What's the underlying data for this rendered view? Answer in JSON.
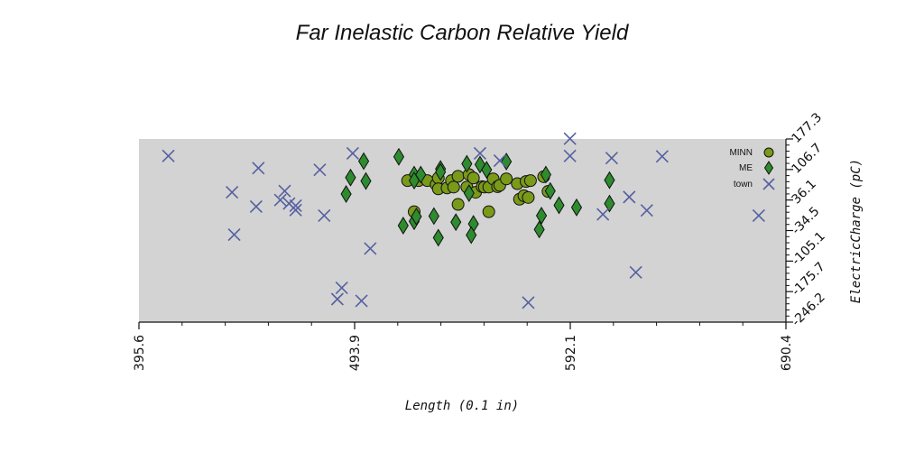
{
  "chart_data": {
    "type": "scatter",
    "title": "Far Inelastic Carbon Relative Yield",
    "xlabel": "Length (0.1 in)",
    "ylabel": "ElectricCharge (pC)",
    "xlim": [
      395.6,
      690.4
    ],
    "ylim": [
      -246.2,
      177.3
    ],
    "x_ticks": [
      "395.6",
      "493.9",
      "592.1",
      "690.4"
    ],
    "y_ticks": [
      "-246.2",
      "-175.7",
      "-105.1",
      "-34.5",
      "36.1",
      "106.7",
      "177.3"
    ],
    "grid": false,
    "background": "#d3d3d3",
    "legend_position": "top-right",
    "series": [
      {
        "name": "MINN",
        "marker": "circle",
        "color": "#7a9a1a",
        "points": [
          [
            518,
            81
          ],
          [
            523,
            81
          ],
          [
            527,
            81
          ],
          [
            531,
            72
          ],
          [
            532,
            87
          ],
          [
            532,
            62
          ],
          [
            536,
            64
          ],
          [
            538,
            81
          ],
          [
            539,
            66
          ],
          [
            541,
            91
          ],
          [
            545,
            66
          ],
          [
            546,
            95
          ],
          [
            548,
            87
          ],
          [
            549,
            54
          ],
          [
            552,
            67
          ],
          [
            553,
            66
          ],
          [
            555,
            66
          ],
          [
            557,
            85
          ],
          [
            559,
            67
          ],
          [
            560,
            70
          ],
          [
            563,
            85
          ],
          [
            568,
            74
          ],
          [
            569,
            38
          ],
          [
            571,
            46
          ],
          [
            572,
            79
          ],
          [
            574,
            81
          ],
          [
            582,
            56
          ],
          [
            521,
            9
          ],
          [
            541,
            26
          ],
          [
            555,
            9
          ],
          [
            573,
            42
          ],
          [
            580,
            90
          ]
        ]
      },
      {
        "name": "ME",
        "marker": "diamond",
        "color": "#2e8b2e",
        "points": [
          [
            490,
            50
          ],
          [
            492,
            88
          ],
          [
            498,
            126
          ],
          [
            499,
            80
          ],
          [
            514,
            136
          ],
          [
            516,
            -23
          ],
          [
            521,
            95
          ],
          [
            521,
            -13
          ],
          [
            522,
            -2
          ],
          [
            521,
            81
          ],
          [
            524,
            95
          ],
          [
            530,
            -1
          ],
          [
            532,
            -51
          ],
          [
            533,
            108
          ],
          [
            533,
            101
          ],
          [
            540,
            -15
          ],
          [
            545,
            120
          ],
          [
            546,
            52
          ],
          [
            548,
            -19
          ],
          [
            547,
            -45
          ],
          [
            551,
            118
          ],
          [
            554,
            106
          ],
          [
            563,
            125
          ],
          [
            578,
            -32
          ],
          [
            579,
            0
          ],
          [
            581,
            95
          ],
          [
            583,
            57
          ],
          [
            587,
            24
          ],
          [
            595,
            19
          ],
          [
            610,
            82
          ],
          [
            610,
            28
          ]
        ]
      },
      {
        "name": "town",
        "marker": "x",
        "color": "#5560a0",
        "points": [
          [
            409,
            138
          ],
          [
            438,
            54
          ],
          [
            439,
            -44
          ],
          [
            449,
            21
          ],
          [
            450,
            110
          ],
          [
            460,
            36
          ],
          [
            462,
            57
          ],
          [
            464,
            28
          ],
          [
            467,
            23
          ],
          [
            467,
            13
          ],
          [
            478,
            106
          ],
          [
            480,
            0
          ],
          [
            486,
            -193
          ],
          [
            488,
            -167
          ],
          [
            493,
            144
          ],
          [
            497,
            -197
          ],
          [
            501,
            -76
          ],
          [
            551,
            144
          ],
          [
            560,
            127
          ],
          [
            573,
            -201
          ],
          [
            592,
            178
          ],
          [
            592,
            138
          ],
          [
            607,
            3
          ],
          [
            611,
            133
          ],
          [
            619,
            43
          ],
          [
            622,
            -131
          ],
          [
            627,
            12
          ],
          [
            634,
            137
          ],
          [
            678,
            0
          ]
        ]
      }
    ]
  }
}
